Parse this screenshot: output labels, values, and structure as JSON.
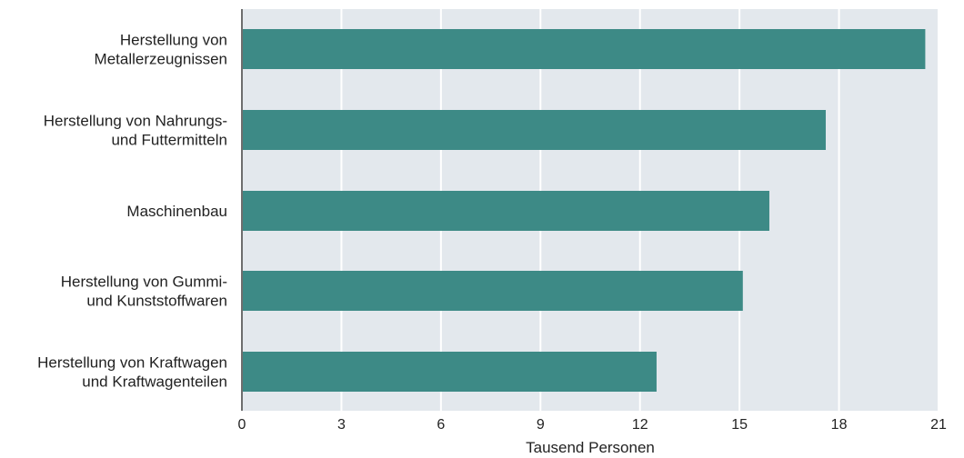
{
  "chart_data": {
    "type": "bar",
    "orientation": "horizontal",
    "categories": [
      "Herstellung von Metallerzeugnissen",
      "Herstellung von Nahrungs- und Futtermitteln",
      "Maschinenbau",
      "Herstellung von Gummi- und Kunststoffwaren",
      "Herstellung von Kraftwagen und Kraftwagenteilen"
    ],
    "category_label_lines": [
      [
        "Herstellung von",
        "Metallerzeugnissen"
      ],
      [
        "Herstellung von Nahrungs-",
        "und Futtermitteln"
      ],
      [
        "Maschinenbau"
      ],
      [
        "Herstellung von Gummi-",
        "und Kunststoffwaren"
      ],
      [
        "Herstellung von Kraftwagen",
        "und Kraftwagenteilen"
      ]
    ],
    "values": [
      20.6,
      17.6,
      15.9,
      15.1,
      12.5
    ],
    "xlabel": "Tausend Personen",
    "ylabel": "",
    "xlim": [
      0,
      21
    ],
    "xticks": [
      0,
      3,
      6,
      9,
      12,
      15,
      18,
      21
    ],
    "grid": true,
    "colors": {
      "bar": "#3d8a86",
      "plot_background": "#e3e8ed",
      "gridline": "#ffffff",
      "axis_line": "#6e6e6e",
      "text": "#222222"
    }
  }
}
